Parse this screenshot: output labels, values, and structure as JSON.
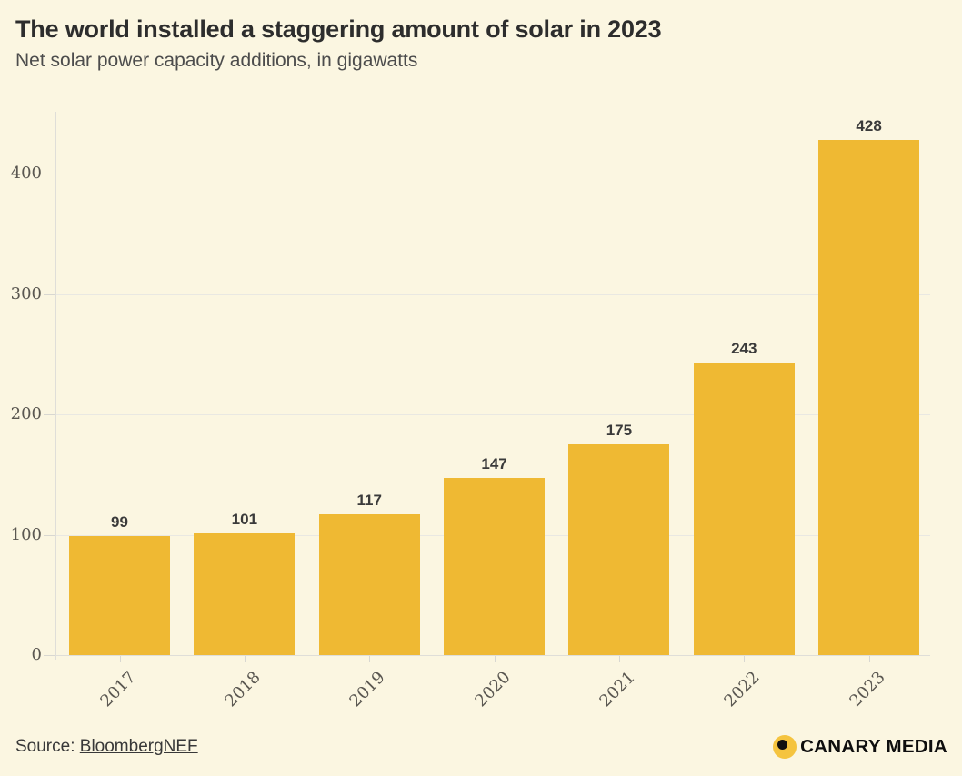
{
  "chart_data": {
    "type": "bar",
    "title": "The world installed a staggering amount of solar in 2023",
    "subtitle": "Net solar power capacity additions, in gigawatts",
    "categories": [
      "2017",
      "2018",
      "2019",
      "2020",
      "2021",
      "2022",
      "2023"
    ],
    "values": [
      99,
      101,
      117,
      147,
      175,
      243,
      428
    ],
    "bar_labels": [
      "99",
      "101",
      "117",
      "147",
      "175",
      "243",
      "428"
    ],
    "xlabel": "",
    "ylabel": "gigawatts",
    "yticks": [
      0,
      100,
      200,
      300,
      400
    ],
    "ytick_labels": [
      "0",
      "100",
      "200",
      "300",
      "400"
    ],
    "ylim": [
      0,
      452
    ],
    "grid": "horizontal",
    "legend": "none",
    "x_tick_rotation": 45
  },
  "footer": {
    "source_prefix": "Source: ",
    "source_link": "BloombergNEF",
    "brand": "CANARY MEDIA"
  },
  "colors": {
    "background": "#FBF6E1",
    "bar": "#EFB933",
    "logo_yellow": "#F5C43F",
    "grid": "#E9E8E2",
    "title_text": "#2D2D2D",
    "value_label_text": "#3A3A3A"
  }
}
